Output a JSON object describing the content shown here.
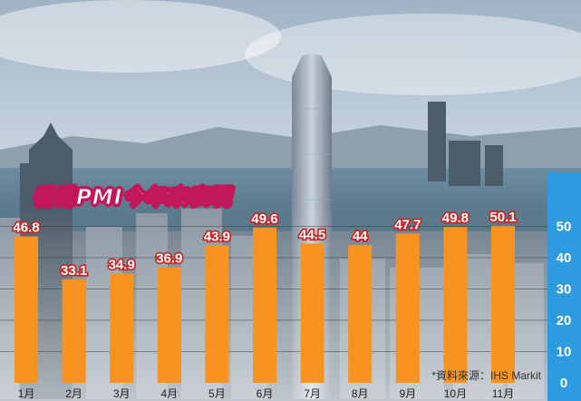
{
  "header": {
    "title": "香港PMI今年來表現"
  },
  "footer": {
    "source": "*資料來源：IHS Markit"
  },
  "colors": {
    "bar": "#f7931e",
    "axis_panel": "#2e9be0",
    "label_outline": "#c62828",
    "title_outline": "#c2185b"
  },
  "chart_data": {
    "type": "bar",
    "title": "香港PMI今年來表現",
    "categories": [
      "1月",
      "2月",
      "3月",
      "4月",
      "5月",
      "6月",
      "7月",
      "8月",
      "9月",
      "10月",
      "11月"
    ],
    "values": [
      46.8,
      33.1,
      34.9,
      36.9,
      43.9,
      49.6,
      44.5,
      44,
      47.7,
      49.8,
      50.1
    ],
    "value_labels": [
      "46.8",
      "33.1",
      "34.9",
      "36.9",
      "43.9",
      "49.6",
      "44.5",
      "44",
      "47.7",
      "49.8",
      "50.1"
    ],
    "yticks": [
      "0",
      "10",
      "20",
      "30",
      "40",
      "50"
    ],
    "ylim": [
      0,
      55
    ],
    "grid": true,
    "axis_position": "right"
  }
}
